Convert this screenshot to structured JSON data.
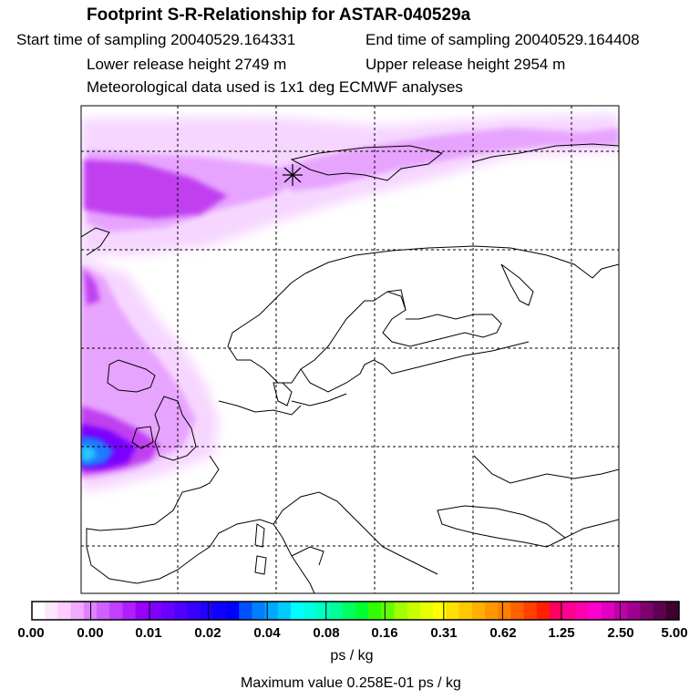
{
  "header": {
    "title": "Footprint S-R-Relationship for ASTAR-040529a",
    "start_time": "Start time of sampling 20040529.164331",
    "end_time": "End time of sampling 20040529.164408",
    "lower_height": "Lower release height 2749 m",
    "upper_height": "Upper release height 2954 m",
    "met_data": "Meteorological data used is 1x1 deg ECMWF analyses"
  },
  "colorbar": {
    "labels": [
      "0.00",
      "0.00",
      "0.01",
      "0.02",
      "0.04",
      "0.08",
      "0.16",
      "0.31",
      "0.62",
      "1.25",
      "2.50",
      "5.00"
    ],
    "colors": [
      "#ffffff",
      "#ffe6ff",
      "#ffccff",
      "#f0aaff",
      "#e080ff",
      "#d060ff",
      "#c040ff",
      "#b020ff",
      "#9a00ff",
      "#8000ff",
      "#6a00ff",
      "#5000ff",
      "#3a00ff",
      "#2000ff",
      "#1000ff",
      "#0000ff",
      "#0050ff",
      "#0080ff",
      "#00a8ff",
      "#00ccff",
      "#00ffff",
      "#00ffe0",
      "#00ffc0",
      "#00ff98",
      "#00ff60",
      "#00ff30",
      "#30ff00",
      "#60ff00",
      "#a0ff00",
      "#c8ff00",
      "#e6ff00",
      "#ffff00",
      "#ffe000",
      "#ffc800",
      "#ffb000",
      "#ff9800",
      "#ff8000",
      "#ff6000",
      "#ff4000",
      "#ff2000",
      "#ff0060",
      "#ff0090",
      "#ff00b0",
      "#ff00d0",
      "#e000c0",
      "#c000a8",
      "#a00090",
      "#800070",
      "#600050",
      "#400030"
    ],
    "units": "ps / kg",
    "max_value": "Maximum value  0.258E-01 ps / kg"
  }
}
